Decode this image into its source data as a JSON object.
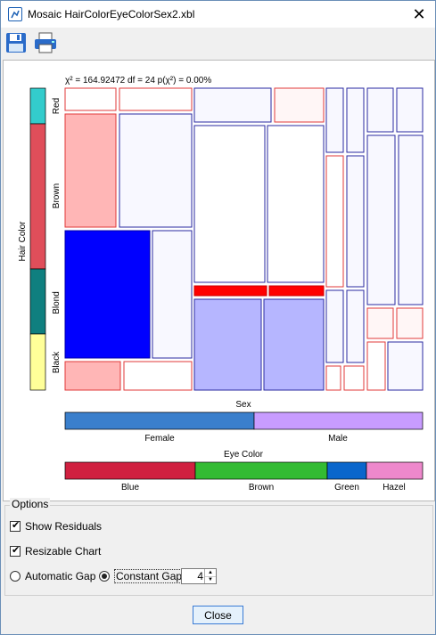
{
  "window": {
    "title": "Mosaic HairColorEyeColorSex2.xbl",
    "close_glyph": "✕"
  },
  "toolbar": {
    "save_icon": "save-icon",
    "print_icon": "print-icon"
  },
  "chart_data": {
    "type": "mosaic",
    "stat_line": "χ² = 164.92472 df = 24 p(χ²) = 0.00%",
    "ylabel": "Hair Color",
    "hair_colors": [
      "Red",
      "Brown",
      "Blond",
      "Black"
    ],
    "sex": {
      "title": "Sex",
      "categories": [
        "Female",
        "Male"
      ]
    },
    "eye": {
      "title": "Eye Color",
      "categories": [
        "Blue",
        "Brown",
        "Green",
        "Hazel"
      ]
    },
    "colors": {
      "hair": [
        "#33cccc",
        "#e04e5a",
        "#0f7f7f",
        "#ffff99"
      ],
      "sex": [
        "#3a7fcc",
        "#c89cff"
      ],
      "eye": [
        "#d02040",
        "#33bb33",
        "#0a66cc",
        "#ee88cc"
      ]
    }
  },
  "options": {
    "legend": "Options",
    "show_residuals": "Show Residuals",
    "resizable_chart": "Resizable Chart",
    "automatic_gap": "Automatic Gap",
    "constant_gap": "Constant Gap",
    "gap_value": "4"
  },
  "buttons": {
    "close": "Close"
  }
}
